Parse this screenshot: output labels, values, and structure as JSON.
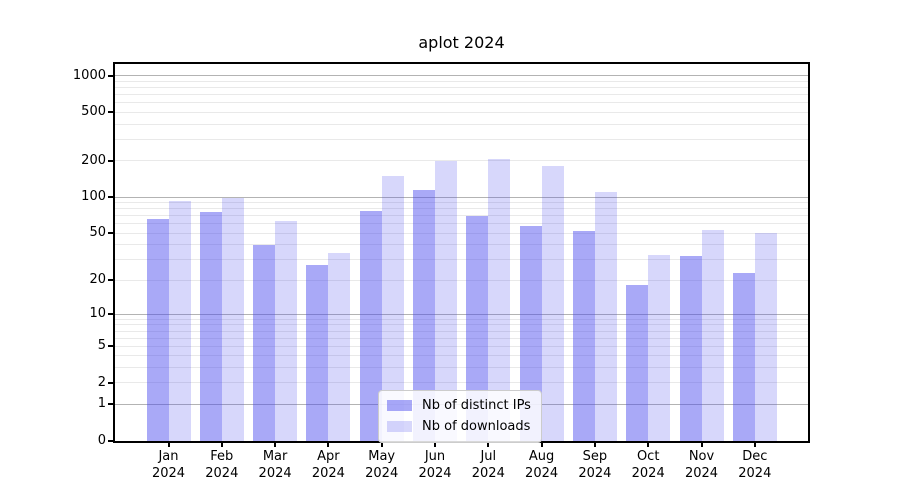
{
  "chart_data": {
    "type": "bar",
    "title": "aplot 2024",
    "categories": [
      "Jan 2024",
      "Feb 2024",
      "Mar 2024",
      "Apr 2024",
      "May 2024",
      "Jun 2024",
      "Jul 2024",
      "Aug 2024",
      "Sep 2024",
      "Oct 2024",
      "Nov 2024",
      "Dec 2024"
    ],
    "series": [
      {
        "name": "Nb of distinct IPs",
        "color": "#4444ee",
        "opacity": 0.46,
        "values": [
          66,
          75,
          40,
          27,
          77,
          115,
          70,
          57,
          52,
          18,
          32,
          23
        ]
      },
      {
        "name": "Nb of downloads",
        "color": "#4444ee",
        "opacity": 0.21,
        "values": [
          92,
          99,
          63,
          34,
          150,
          197,
          207,
          180,
          110,
          33,
          53,
          50
        ]
      }
    ],
    "yscale": "log1p",
    "ylim": [
      0,
      1250
    ],
    "yticks": [
      0,
      1,
      2,
      5,
      10,
      20,
      50,
      100,
      200,
      500,
      1000
    ],
    "grid": {
      "major": [
        1,
        10,
        100,
        1000
      ],
      "minor": [
        2,
        3,
        4,
        5,
        6,
        7,
        8,
        9,
        20,
        30,
        40,
        50,
        60,
        70,
        80,
        90,
        200,
        300,
        400,
        500,
        600,
        700,
        800,
        900
      ]
    },
    "legend_position": "lower center",
    "colors": {
      "grid_major": "#b3b3b3",
      "grid_minor": "#e9e9e9",
      "spine": "#000000",
      "text": "#000000",
      "legend_border": "#cccccc",
      "legend_bg": "#ffffff"
    }
  }
}
